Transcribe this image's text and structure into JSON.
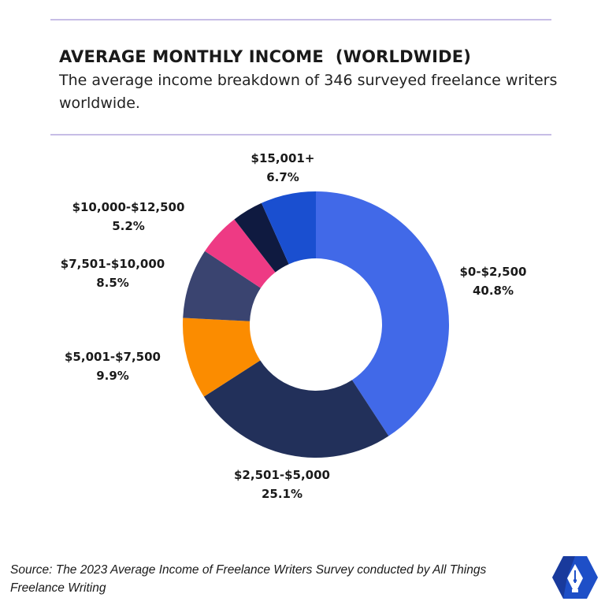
{
  "header": {
    "title": "AVERAGE MONTHLY INCOME  (WORLDWIDE)",
    "subtitle": "The average income breakdown of 346 surveyed freelance writers worldwide."
  },
  "chart_data": {
    "type": "pie",
    "variant": "donut",
    "title": "AVERAGE MONTHLY INCOME  (WORLDWIDE)",
    "subtitle": "The average income breakdown of 346 surveyed freelance writers worldwide.",
    "unit": "%",
    "slices": [
      {
        "label": "$0-$2,500",
        "value": 40.8,
        "value_label": "40.8%",
        "color": "#4169e8"
      },
      {
        "label": "$2,501-$5,000",
        "value": 25.1,
        "value_label": "25.1%",
        "color": "#22305a"
      },
      {
        "label": "$5,001-$7,500",
        "value": 9.9,
        "value_label": "9.9%",
        "color": "#fb8c00"
      },
      {
        "label": "$7,501-$10,000",
        "value": 8.5,
        "value_label": "8.5%",
        "color": "#3a4470"
      },
      {
        "label": "$10,000-$12,500",
        "value": 5.2,
        "value_label": "5.2%",
        "color": "#ee3a84"
      },
      {
        "label": "$15,001+",
        "value": 0.0,
        "value_label": "",
        "color": "#0f1a40"
      },
      {
        "label": "$15,001+",
        "value": 6.7,
        "value_label": "6.7%",
        "color": "#1a4fd0"
      }
    ],
    "legend": "none",
    "grid": false
  },
  "footer": {
    "source": "Source: The 2023 Average Income of Freelance Writers Survey conducted by All Things Freelance Writing"
  },
  "colors": {
    "rule": "#c7bde6",
    "logo_primary": "#1e4fc7",
    "logo_dark": "#152a78"
  },
  "icons": {
    "logo": "pen-nib-hexagon-icon"
  }
}
